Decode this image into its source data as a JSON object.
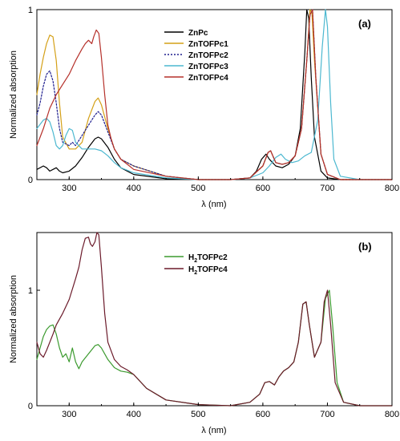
{
  "chart_data": [
    {
      "type": "line",
      "panel_label": "(a)",
      "xlabel": "λ (nm)",
      "ylabel": "Normalized absorption",
      "xlim": [
        250,
        800
      ],
      "ylim": [
        0,
        1
      ],
      "x_ticks": [
        "300",
        "400",
        "500",
        "600",
        "700",
        "800"
      ],
      "y_ticks": [
        "0",
        "1"
      ],
      "legend_position": "top-center",
      "series": [
        {
          "name": "ZnPc",
          "color": "#000000",
          "dash": "solid",
          "x": [
            250,
            260,
            265,
            270,
            275,
            280,
            285,
            290,
            300,
            310,
            320,
            330,
            340,
            345,
            350,
            360,
            370,
            380,
            400,
            450,
            500,
            550,
            580,
            590,
            598,
            605,
            610,
            620,
            630,
            640,
            650,
            658,
            665,
            668,
            671,
            675,
            680,
            690,
            700,
            720,
            750,
            800
          ],
          "y": [
            0.06,
            0.08,
            0.07,
            0.05,
            0.06,
            0.07,
            0.05,
            0.04,
            0.05,
            0.08,
            0.13,
            0.19,
            0.24,
            0.25,
            0.24,
            0.19,
            0.12,
            0.07,
            0.03,
            0.005,
            0.0,
            0.0,
            0.01,
            0.05,
            0.12,
            0.15,
            0.12,
            0.08,
            0.07,
            0.09,
            0.14,
            0.3,
            0.75,
            1.0,
            0.95,
            0.6,
            0.25,
            0.05,
            0.01,
            0.0,
            0.0,
            0.0
          ]
        },
        {
          "name": "ZnTOFPc1",
          "color": "#d4a017",
          "dash": "solid",
          "x": [
            250,
            255,
            260,
            265,
            270,
            275,
            280,
            285,
            290,
            300,
            305,
            310,
            320,
            330,
            340,
            345,
            350,
            360,
            370,
            380,
            400,
            450,
            500,
            550,
            580,
            600,
            608,
            612,
            620,
            630,
            640,
            650,
            660,
            668,
            673,
            676,
            680,
            690,
            700,
            720,
            750,
            800
          ],
          "y": [
            0.5,
            0.62,
            0.72,
            0.8,
            0.85,
            0.84,
            0.7,
            0.45,
            0.25,
            0.18,
            0.18,
            0.18,
            0.22,
            0.36,
            0.46,
            0.48,
            0.44,
            0.3,
            0.18,
            0.12,
            0.08,
            0.02,
            0.0,
            0.0,
            0.01,
            0.08,
            0.16,
            0.17,
            0.1,
            0.09,
            0.1,
            0.14,
            0.3,
            0.7,
            1.0,
            0.98,
            0.7,
            0.15,
            0.03,
            0.0,
            0.0,
            0.0
          ]
        },
        {
          "name": "ZnTOFPc2",
          "color": "#1f1f8f",
          "dash": "dotted",
          "x": [
            250,
            255,
            260,
            265,
            270,
            275,
            280,
            285,
            290,
            300,
            305,
            310,
            320,
            330,
            340,
            345,
            350,
            360,
            370,
            380,
            400,
            450,
            500,
            550,
            580,
            600,
            608,
            612,
            620,
            630,
            640,
            650,
            660,
            668,
            673,
            677,
            682,
            690,
            700,
            720,
            750,
            800
          ],
          "y": [
            0.38,
            0.45,
            0.55,
            0.62,
            0.64,
            0.58,
            0.45,
            0.3,
            0.22,
            0.2,
            0.22,
            0.2,
            0.26,
            0.32,
            0.38,
            0.4,
            0.38,
            0.28,
            0.18,
            0.12,
            0.08,
            0.02,
            0.0,
            0.0,
            0.01,
            0.08,
            0.16,
            0.17,
            0.1,
            0.09,
            0.1,
            0.14,
            0.3,
            0.7,
            0.97,
            1.0,
            0.6,
            0.15,
            0.03,
            0.0,
            0.0,
            0.0
          ]
        },
        {
          "name": "ZnTOFPc3",
          "color": "#4cb8d0",
          "dash": "solid",
          "x": [
            250,
            260,
            265,
            270,
            275,
            280,
            285,
            290,
            295,
            300,
            305,
            310,
            320,
            330,
            340,
            350,
            360,
            370,
            380,
            400,
            450,
            500,
            550,
            580,
            600,
            610,
            620,
            628,
            635,
            645,
            655,
            665,
            675,
            685,
            692,
            697,
            700,
            705,
            710,
            720,
            750,
            800
          ],
          "y": [
            0.3,
            0.35,
            0.36,
            0.34,
            0.28,
            0.2,
            0.18,
            0.2,
            0.26,
            0.3,
            0.29,
            0.22,
            0.18,
            0.18,
            0.18,
            0.17,
            0.14,
            0.1,
            0.07,
            0.04,
            0.01,
            0.0,
            0.0,
            0.01,
            0.04,
            0.08,
            0.13,
            0.15,
            0.12,
            0.1,
            0.11,
            0.14,
            0.16,
            0.35,
            0.78,
            1.0,
            0.9,
            0.45,
            0.12,
            0.02,
            0.0,
            0.0
          ]
        },
        {
          "name": "ZnTOFPc4",
          "color": "#b5302a",
          "dash": "solid",
          "x": [
            250,
            260,
            270,
            280,
            290,
            300,
            310,
            320,
            325,
            330,
            335,
            338,
            342,
            346,
            350,
            355,
            360,
            365,
            370,
            380,
            390,
            400,
            450,
            500,
            550,
            580,
            600,
            608,
            612,
            620,
            630,
            640,
            650,
            660,
            668,
            673,
            677,
            682,
            690,
            700,
            720,
            800
          ],
          "y": [
            0.2,
            0.3,
            0.42,
            0.5,
            0.56,
            0.62,
            0.7,
            0.77,
            0.8,
            0.82,
            0.8,
            0.84,
            0.88,
            0.86,
            0.72,
            0.5,
            0.32,
            0.24,
            0.18,
            0.12,
            0.09,
            0.06,
            0.02,
            0.0,
            0.0,
            0.01,
            0.08,
            0.16,
            0.17,
            0.1,
            0.09,
            0.1,
            0.14,
            0.3,
            0.7,
            0.97,
            1.0,
            0.6,
            0.15,
            0.03,
            0.0,
            0.0
          ]
        }
      ]
    },
    {
      "type": "line",
      "panel_label": "(b)",
      "xlabel": "λ (nm)",
      "ylabel": "Normalized absorption",
      "xlim": [
        250,
        800
      ],
      "ylim": [
        0,
        1.5
      ],
      "x_ticks": [
        "300",
        "400",
        "500",
        "600",
        "700",
        "800"
      ],
      "y_ticks": [
        "0",
        "1"
      ],
      "legend_position": "top-center",
      "series": [
        {
          "name": "H2TOFPc2",
          "legend_main": "H",
          "legend_sub": "2",
          "legend_rest": "TOFPc2",
          "color": "#3b9a2e",
          "dash": "solid",
          "x": [
            250,
            255,
            260,
            265,
            270,
            275,
            280,
            285,
            290,
            295,
            300,
            305,
            310,
            315,
            320,
            330,
            340,
            345,
            350,
            360,
            370,
            380,
            390,
            400,
            420,
            450,
            500,
            550,
            580,
            595,
            603,
            610,
            618,
            625,
            632,
            640,
            648,
            655,
            662,
            667,
            672,
            680,
            690,
            697,
            703,
            708,
            715,
            725,
            750,
            800
          ],
          "y": [
            0.4,
            0.5,
            0.6,
            0.66,
            0.69,
            0.7,
            0.62,
            0.5,
            0.42,
            0.45,
            0.38,
            0.5,
            0.38,
            0.32,
            0.38,
            0.45,
            0.52,
            0.53,
            0.5,
            0.4,
            0.33,
            0.3,
            0.29,
            0.27,
            0.15,
            0.05,
            0.01,
            0.0,
            0.03,
            0.1,
            0.2,
            0.21,
            0.18,
            0.25,
            0.3,
            0.33,
            0.38,
            0.55,
            0.88,
            0.9,
            0.7,
            0.42,
            0.55,
            0.93,
            1.0,
            0.7,
            0.2,
            0.03,
            0.0,
            0.0
          ]
        },
        {
          "name": "H2TOFPc4",
          "legend_main": "H",
          "legend_sub": "2",
          "legend_rest": "TOFPc4",
          "color": "#6b1a2a",
          "dash": "solid",
          "x": [
            250,
            255,
            260,
            265,
            270,
            275,
            280,
            290,
            300,
            310,
            315,
            320,
            325,
            330,
            333,
            336,
            340,
            343,
            346,
            350,
            355,
            360,
            370,
            380,
            390,
            400,
            420,
            450,
            500,
            550,
            580,
            595,
            603,
            610,
            618,
            625,
            632,
            640,
            648,
            655,
            662,
            667,
            672,
            680,
            690,
            695,
            700,
            705,
            712,
            725,
            750,
            800
          ],
          "y": [
            0.55,
            0.45,
            0.42,
            0.48,
            0.55,
            0.62,
            0.7,
            0.8,
            0.92,
            1.1,
            1.2,
            1.35,
            1.45,
            1.46,
            1.4,
            1.38,
            1.42,
            1.5,
            1.48,
            1.2,
            0.8,
            0.55,
            0.4,
            0.34,
            0.31,
            0.27,
            0.15,
            0.05,
            0.01,
            0.0,
            0.03,
            0.1,
            0.2,
            0.21,
            0.18,
            0.25,
            0.3,
            0.33,
            0.38,
            0.55,
            0.88,
            0.9,
            0.7,
            0.42,
            0.55,
            0.9,
            1.0,
            0.7,
            0.2,
            0.03,
            0.0,
            0.0
          ]
        }
      ]
    }
  ]
}
